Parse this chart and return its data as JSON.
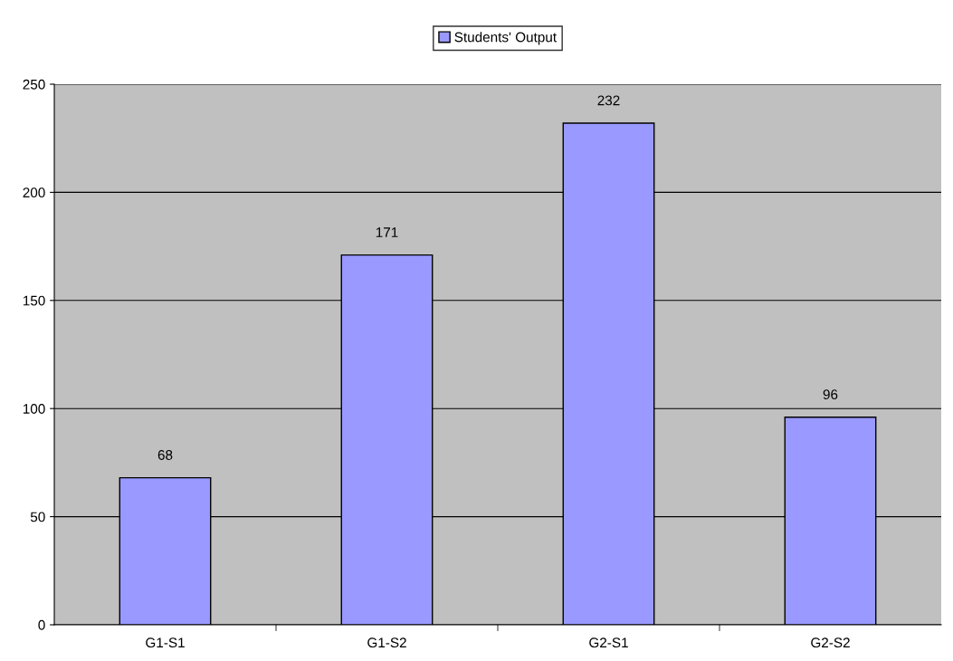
{
  "chart_data": {
    "type": "bar",
    "categories": [
      "G1-S1",
      "G1-S2",
      "G2-S1",
      "G2-S2"
    ],
    "series": [
      {
        "name": "Students' Output",
        "color": "#9999ff",
        "values": [
          68,
          171,
          232,
          96
        ]
      }
    ],
    "ylim": [
      0,
      250
    ],
    "yticks": [
      0,
      50,
      100,
      150,
      200,
      250
    ],
    "grid": "y",
    "legend": "top",
    "data_labels": true
  }
}
